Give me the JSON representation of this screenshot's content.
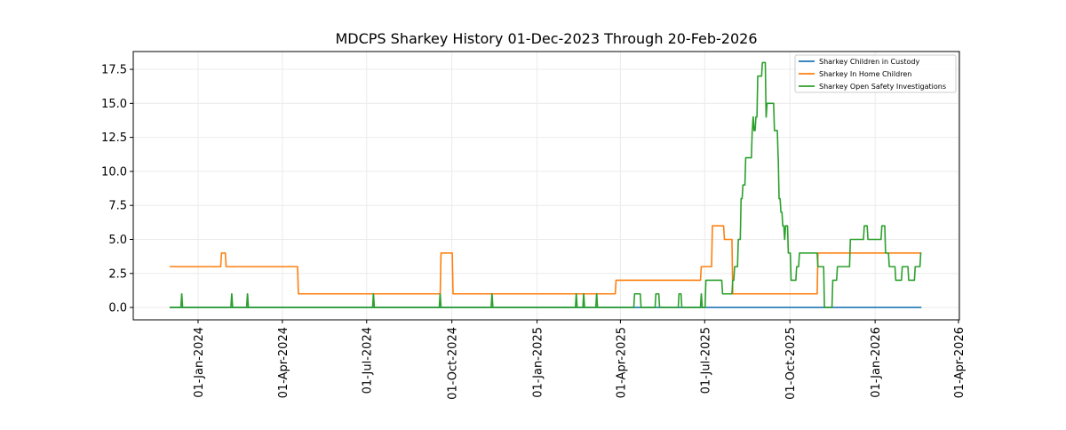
{
  "chart_data": {
    "type": "line",
    "title": "MDCPS Sharkey History 01-Dec-2023 Through 20-Feb-2026",
    "xlabel": "",
    "ylabel": "",
    "xlim": [
      "2023-10-23",
      "2026-04-02"
    ],
    "ylim": [
      -0.91,
      18.81
    ],
    "grid": true,
    "legend_position": "top-right",
    "x_ticks": [
      "01-Jan-2024",
      "01-Apr-2024",
      "01-Jul-2024",
      "01-Oct-2024",
      "01-Jan-2025",
      "01-Apr-2025",
      "01-Jul-2025",
      "01-Oct-2025",
      "01-Jan-2026",
      "01-Apr-2026"
    ],
    "x_tick_dates": [
      "2024-01-01",
      "2024-04-01",
      "2024-07-01",
      "2024-10-01",
      "2025-01-01",
      "2025-04-01",
      "2025-07-01",
      "2025-10-01",
      "2026-01-01",
      "2026-04-01"
    ],
    "y_ticks": [
      "0.0",
      "2.5",
      "5.0",
      "7.5",
      "10.0",
      "12.5",
      "15.0",
      "17.5"
    ],
    "end_date": "2026-02-20",
    "series": [
      {
        "name": "Sharkey Children in Custody",
        "color": "#1f77b4",
        "steps": [
          [
            "2023-12-01",
            0
          ]
        ]
      },
      {
        "name": "Sharkey In Home Children",
        "color": "#ff7f0e",
        "steps": [
          [
            "2023-12-01",
            3
          ],
          [
            "2024-01-26",
            4
          ],
          [
            "2024-01-31",
            3
          ],
          [
            "2024-04-18",
            1
          ],
          [
            "2024-09-19",
            4
          ],
          [
            "2024-10-02",
            1
          ],
          [
            "2025-03-27",
            2
          ],
          [
            "2025-06-27",
            3
          ],
          [
            "2025-07-09",
            6
          ],
          [
            "2025-07-22",
            5
          ],
          [
            "2025-07-31",
            1
          ],
          [
            "2025-10-31",
            4
          ]
        ]
      },
      {
        "name": "Sharkey Open Safety Investigations",
        "color": "#2ca02c",
        "steps": [
          [
            "2023-12-01",
            0
          ],
          [
            "2023-12-14",
            1
          ],
          [
            "2023-12-15",
            0
          ],
          [
            "2024-02-06",
            1
          ],
          [
            "2024-02-07",
            0
          ],
          [
            "2024-02-23",
            1
          ],
          [
            "2024-02-24",
            0
          ],
          [
            "2024-07-08",
            1
          ],
          [
            "2024-07-09",
            0
          ],
          [
            "2024-09-18",
            1
          ],
          [
            "2024-09-19",
            0
          ],
          [
            "2024-11-13",
            1
          ],
          [
            "2024-11-14",
            0
          ],
          [
            "2025-02-12",
            1
          ],
          [
            "2025-02-13",
            0
          ],
          [
            "2025-02-20",
            1
          ],
          [
            "2025-02-21",
            0
          ],
          [
            "2025-03-06",
            1
          ],
          [
            "2025-03-07",
            0
          ],
          [
            "2025-04-16",
            1
          ],
          [
            "2025-04-23",
            0
          ],
          [
            "2025-05-09",
            1
          ],
          [
            "2025-05-13",
            0
          ],
          [
            "2025-06-03",
            1
          ],
          [
            "2025-06-06",
            0
          ],
          [
            "2025-06-27",
            1
          ],
          [
            "2025-06-28",
            0
          ],
          [
            "2025-07-02",
            2
          ],
          [
            "2025-07-20",
            1
          ],
          [
            "2025-07-31",
            2
          ],
          [
            "2025-08-02",
            3
          ],
          [
            "2025-08-06",
            5
          ],
          [
            "2025-08-09",
            8
          ],
          [
            "2025-08-11",
            9
          ],
          [
            "2025-08-14",
            11
          ],
          [
            "2025-08-21",
            13
          ],
          [
            "2025-08-22",
            14
          ],
          [
            "2025-08-23",
            13
          ],
          [
            "2025-08-25",
            14
          ],
          [
            "2025-08-27",
            17
          ],
          [
            "2025-09-01",
            18
          ],
          [
            "2025-09-05",
            14
          ],
          [
            "2025-09-06",
            15
          ],
          [
            "2025-09-14",
            13
          ],
          [
            "2025-09-18",
            11
          ],
          [
            "2025-09-19",
            8
          ],
          [
            "2025-09-21",
            7
          ],
          [
            "2025-09-23",
            6
          ],
          [
            "2025-09-25",
            5
          ],
          [
            "2025-09-26",
            6
          ],
          [
            "2025-09-29",
            4
          ],
          [
            "2025-10-02",
            2
          ],
          [
            "2025-10-08",
            3
          ],
          [
            "2025-10-11",
            4
          ],
          [
            "2025-10-31",
            3
          ],
          [
            "2025-11-07",
            0
          ],
          [
            "2025-11-16",
            2
          ],
          [
            "2025-11-21",
            3
          ],
          [
            "2025-12-05",
            5
          ],
          [
            "2025-12-20",
            6
          ],
          [
            "2025-12-24",
            5
          ],
          [
            "2026-01-08",
            6
          ],
          [
            "2026-01-12",
            4
          ],
          [
            "2026-01-16",
            3
          ],
          [
            "2026-01-23",
            2
          ],
          [
            "2026-01-30",
            3
          ],
          [
            "2026-02-06",
            2
          ],
          [
            "2026-02-13",
            3
          ],
          [
            "2026-02-19",
            4
          ]
        ]
      }
    ]
  }
}
